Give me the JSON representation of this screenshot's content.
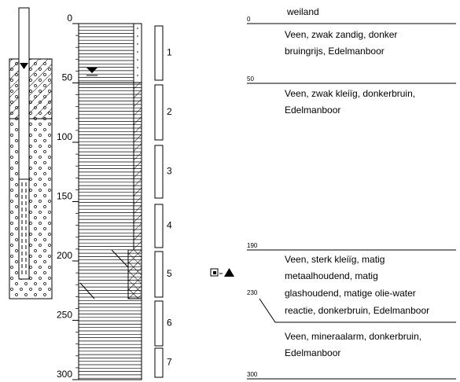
{
  "depth_axis": {
    "ticks": [
      0,
      50,
      100,
      150,
      200,
      250,
      300
    ]
  },
  "samples": [
    "1",
    "2",
    "3",
    "4",
    "5",
    "6",
    "7"
  ],
  "surface": "weiland",
  "layers": [
    {
      "top": "0",
      "lines": [
        "Veen, zwak zandig, donker",
        "bruingrijs,  Edelmanboor"
      ]
    },
    {
      "top": "50",
      "lines": [
        "Veen, zwak kleiïg, donkerbruin,",
        "Edelmanboor"
      ]
    },
    {
      "top": "190",
      "lines": [
        "Veen, sterk kleiïg, matig",
        "metaalhoudend,  matig",
        "glashoudend, matige olie-water",
        "reactie,  donkerbruin,  Edelmanboor"
      ]
    },
    {
      "top": "230",
      "lines": [
        "Veen, mineraalarm, donkerbruin,",
        "Edelmanboor"
      ]
    }
  ],
  "bottom": "300"
}
